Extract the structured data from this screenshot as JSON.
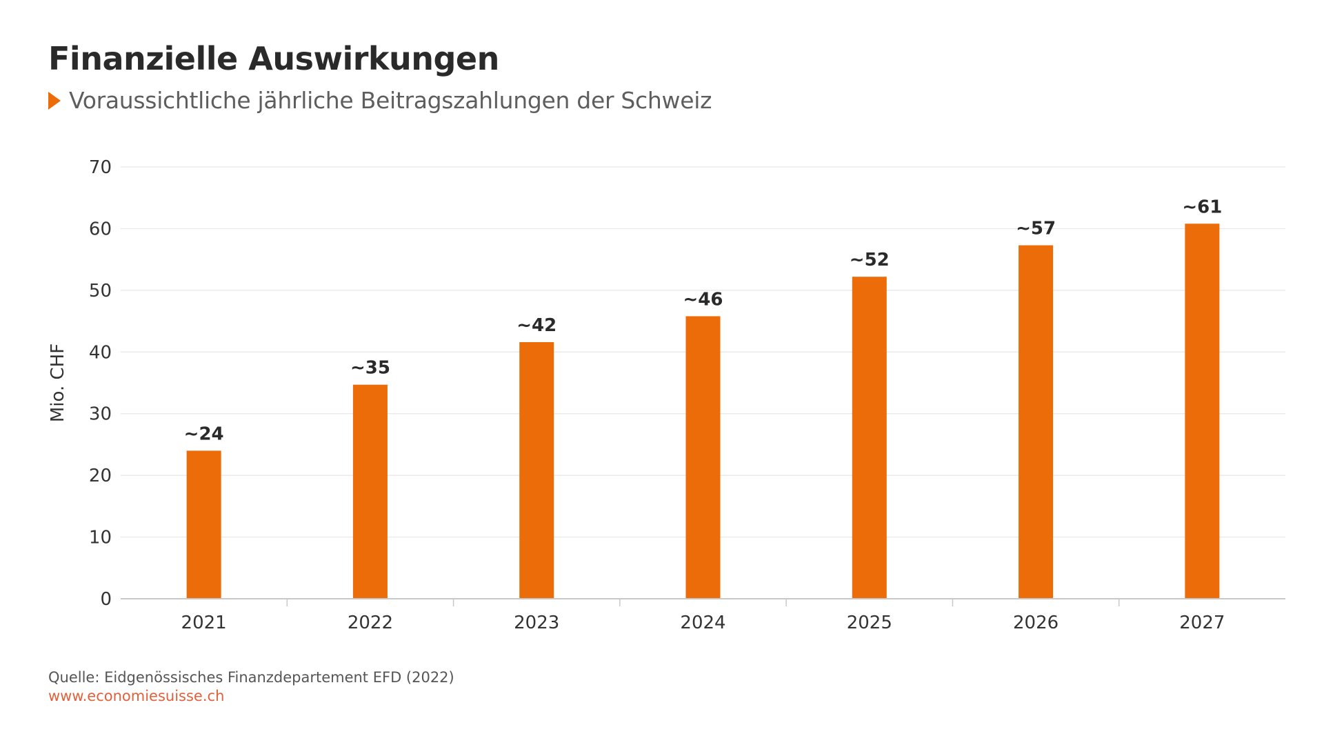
{
  "header": {
    "title": "Finanzielle Auswirkungen",
    "subtitle": "Voraussichtliche jährliche Beitragszahlungen der Schweiz",
    "subtitle_icon": "triangle-right-icon"
  },
  "footer": {
    "source": "Quelle: Eidgenössisches Finanzdepartement EFD (2022)",
    "url": "www.economiesuisse.ch"
  },
  "colors": {
    "bar": "#ec6c0a",
    "accent": "#ec6c0a",
    "url": "#e2603c",
    "grid": "#e6e6e6",
    "text": "#2a2a2a"
  },
  "chart_data": {
    "type": "bar",
    "title": "Finanzielle Auswirkungen",
    "subtitle": "Voraussichtliche jährliche Beitragszahlungen der Schweiz",
    "xlabel": "",
    "ylabel": "Mio. CHF",
    "categories": [
      "2021",
      "2022",
      "2023",
      "2024",
      "2025",
      "2026",
      "2027"
    ],
    "values": [
      24,
      34.7,
      41.6,
      45.8,
      52.2,
      57.3,
      60.8
    ],
    "data_labels": [
      "~24",
      "~35",
      "~42",
      "~46",
      "~52",
      "~57",
      "~61"
    ],
    "ylim": [
      0,
      70
    ],
    "yticks": [
      0,
      10,
      20,
      30,
      40,
      50,
      60,
      70
    ],
    "grid": true,
    "legend": "none"
  }
}
